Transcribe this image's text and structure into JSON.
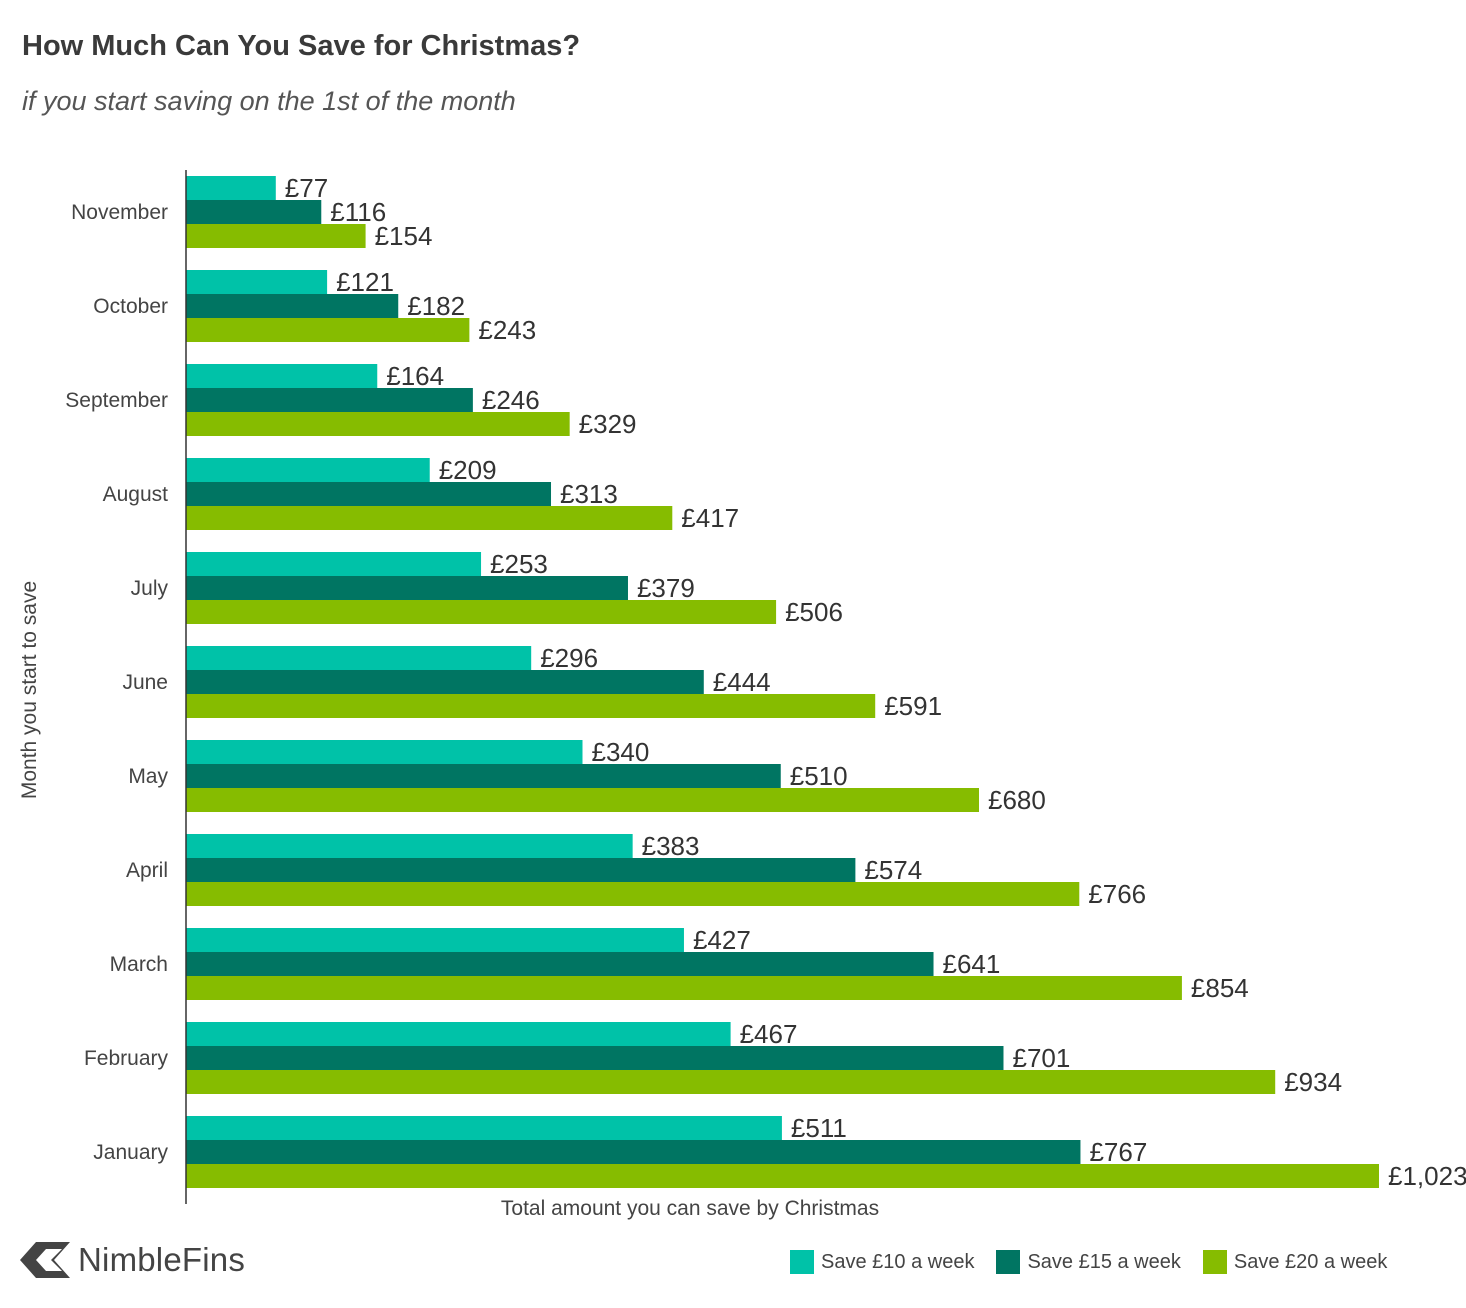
{
  "header": {
    "title": "How Much Can You Save for Christmas?",
    "subtitle": "if you start saving on the 1st of the month"
  },
  "brand": {
    "name": "NimbleFins",
    "logo_icon": "nimblefins-chevron-icon"
  },
  "chart_data": {
    "type": "bar",
    "orientation": "horizontal",
    "categories": [
      "November",
      "October",
      "September",
      "August",
      "July",
      "June",
      "May",
      "April",
      "March",
      "February",
      "January"
    ],
    "series": [
      {
        "name": "Save £10 a week",
        "color": "#00C2A8",
        "values": [
          77,
          121,
          164,
          209,
          253,
          296,
          340,
          383,
          427,
          467,
          511
        ],
        "labels": [
          "£77",
          "£121",
          "£164",
          "£209",
          "£253",
          "£296",
          "£340",
          "£383",
          "£427",
          "£467",
          "£511"
        ]
      },
      {
        "name": "Save £15 a week",
        "color": "#007562",
        "values": [
          116,
          182,
          246,
          313,
          379,
          444,
          510,
          574,
          641,
          701,
          767
        ],
        "labels": [
          "£116",
          "£182",
          "£246",
          "£313",
          "£379",
          "£444",
          "£510",
          "£574",
          "£641",
          "£701",
          "£767"
        ]
      },
      {
        "name": "Save £20 a week",
        "color": "#86BC00",
        "values": [
          154,
          243,
          329,
          417,
          506,
          591,
          680,
          766,
          854,
          934,
          1023
        ],
        "labels": [
          "£154",
          "£243",
          "£329",
          "£417",
          "£506",
          "£591",
          "£680",
          "£766",
          "£854",
          "£934",
          "£1,023"
        ]
      }
    ],
    "xlabel": "Total amount you can save by Christmas",
    "ylabel": "Month you start to save",
    "xlim": [
      0,
      1023
    ],
    "grid": false,
    "legend_position": "bottom-right"
  }
}
